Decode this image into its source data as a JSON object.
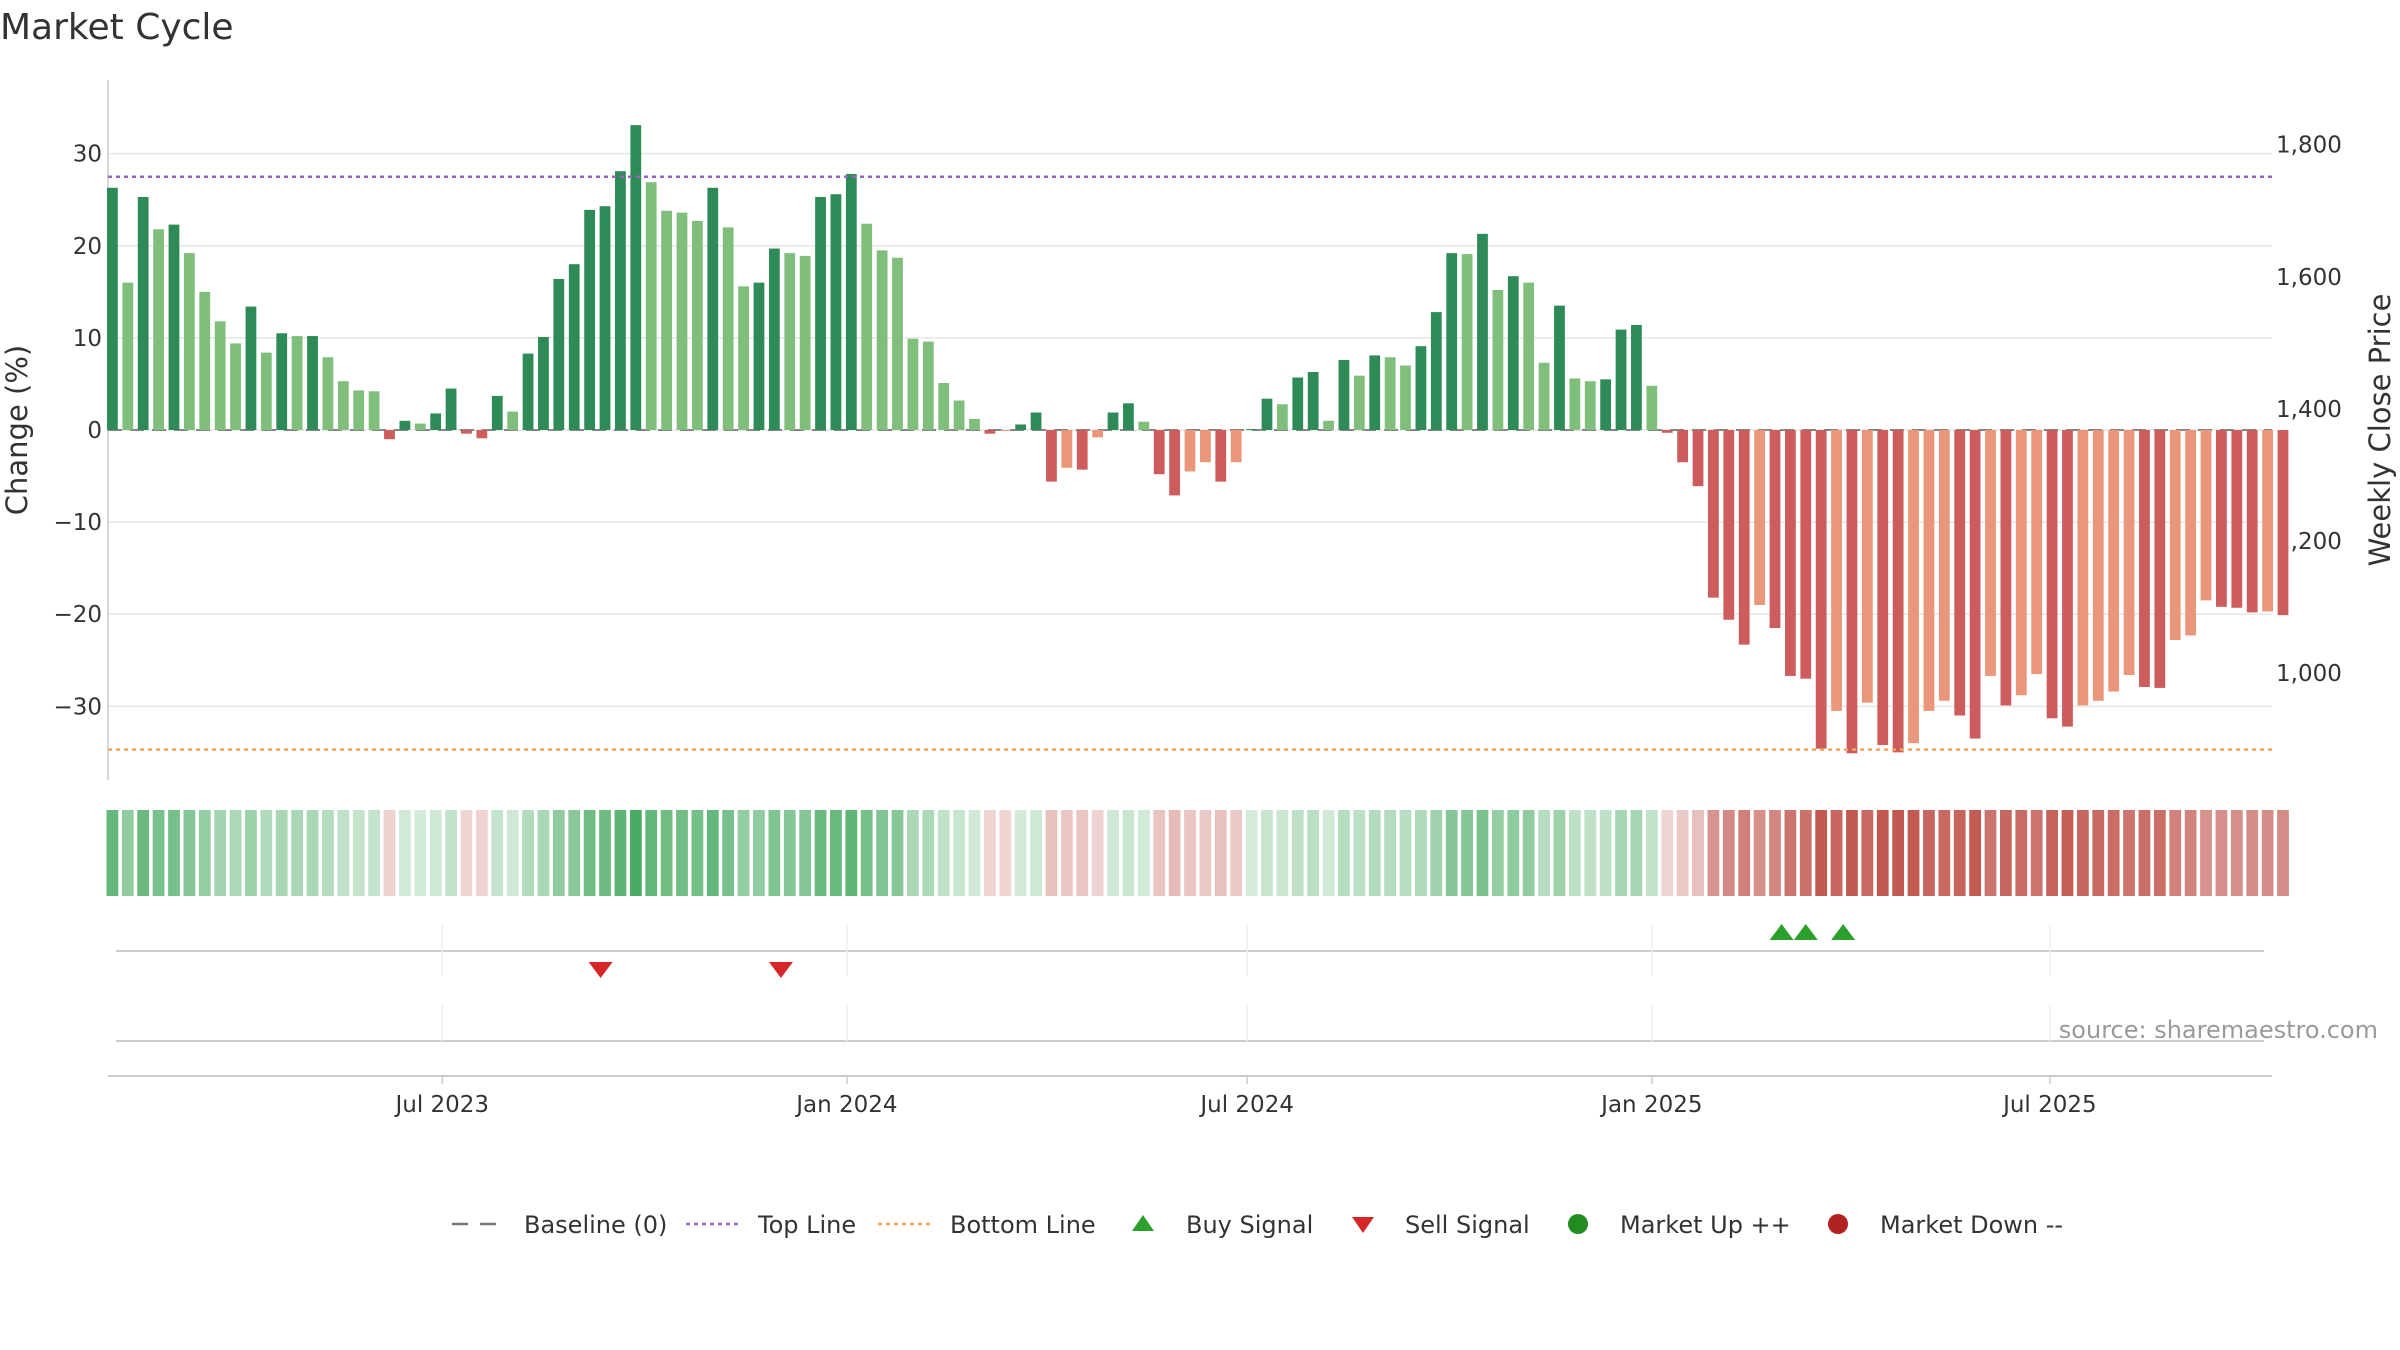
{
  "chart_data": {
    "type": "bar",
    "title": "Market Cycle",
    "ylabel": "Change (%)",
    "y2label": "Weekly Close Price",
    "ylim": [
      -38,
      38
    ],
    "y2lim": [
      838,
      1898
    ],
    "yticks": [
      30,
      20,
      10,
      0,
      -10,
      -20,
      -30
    ],
    "y2ticks": [
      1800,
      1600,
      1400,
      1200,
      1000
    ],
    "y2tick_labels": [
      "1,800",
      "1,600",
      "1,400",
      "1,200",
      "1,000"
    ],
    "top_line": 27.5,
    "bottom_line": -34.7,
    "x_start": "2023-01-30",
    "x_end": "2025-10-10",
    "xticks": [
      {
        "date": "2023-07-01",
        "label": "Jul 2023"
      },
      {
        "date": "2024-01-01",
        "label": "Jan 2024"
      },
      {
        "date": "2024-07-01",
        "label": "Jul 2024"
      },
      {
        "date": "2025-01-01",
        "label": "Jan 2025"
      },
      {
        "date": "2025-07-01",
        "label": "Jul 2025"
      }
    ],
    "series": [
      {
        "start": "2023-02-01",
        "step_days": 7,
        "values": [
          26.3,
          16.0,
          25.3,
          21.8,
          22.3,
          19.2,
          15.0,
          11.8,
          9.4,
          13.4,
          8.4,
          10.5,
          10.2,
          10.2,
          7.9,
          5.3,
          4.3,
          4.2,
          -1.0,
          1.0,
          0.7,
          1.8,
          4.5,
          -0.4,
          -0.9,
          3.7,
          2.0,
          8.3,
          10.1,
          16.4,
          18.0,
          23.9,
          24.3,
          28.1,
          33.1,
          26.9,
          23.8,
          23.6,
          22.7,
          26.3,
          22.0,
          15.6,
          16.0,
          19.7,
          19.2,
          18.9,
          25.3,
          25.6,
          27.8,
          22.4,
          19.5,
          18.7,
          9.9,
          9.6,
          5.1,
          3.2,
          1.2,
          -0.4,
          -0.1,
          0.6,
          1.9,
          -5.6,
          -4.1,
          -4.3,
          -0.8,
          1.9,
          2.9,
          0.9,
          -4.8,
          -7.1,
          -4.5,
          -3.5,
          -5.6,
          -3.5,
          0.1,
          3.4,
          2.8,
          5.7,
          6.3,
          1.0,
          7.6,
          5.9,
          8.1,
          7.9,
          7.0,
          9.1,
          12.8,
          19.2,
          19.1,
          21.3,
          15.2,
          16.7,
          16.0,
          7.3,
          13.5,
          5.6,
          5.3,
          5.5,
          10.9,
          11.4,
          4.8,
          -0.3,
          -3.5,
          -6.1,
          -18.2,
          -20.6,
          -23.3,
          -19.0,
          -21.5,
          -26.7,
          -27.0,
          -34.6,
          -30.5,
          -35.1,
          -29.6,
          -34.2,
          -35.0,
          -34.0,
          -30.5,
          -29.4,
          -31.0,
          -33.5,
          -26.7,
          -29.9,
          -28.8,
          -26.5,
          -31.3,
          -32.2,
          -29.9,
          -29.4,
          -28.4,
          -26.6,
          -27.9,
          -28.0,
          -22.8,
          -22.3,
          -18.5,
          -19.2,
          -19.3,
          -19.8,
          -19.7,
          -20.1
        ]
      }
    ],
    "buy_signals": [
      "2025-03-01",
      "2025-03-12",
      "2025-03-29"
    ],
    "sell_signals": [
      "2023-09-11",
      "2023-12-02"
    ],
    "legend": [
      {
        "kind": "baseline",
        "label": "Baseline (0)"
      },
      {
        "kind": "topline",
        "label": "Top Line"
      },
      {
        "kind": "bottomline",
        "label": "Bottom Line"
      },
      {
        "kind": "buy",
        "label": "Buy Signal"
      },
      {
        "kind": "sell",
        "label": "Sell Signal"
      },
      {
        "kind": "up",
        "label": "Market Up ++"
      },
      {
        "kind": "down",
        "label": "Market Down --"
      }
    ],
    "legend_position": "bottom",
    "source": "source: sharemaestro.com",
    "colors": {
      "strong_up": "#2e8b57",
      "weak_up": "#7fbf7b",
      "strong_down": "#cd5c5c",
      "weak_down": "#e9967a",
      "top_line": "#9467bd",
      "bottom_line": "#f4a460",
      "baseline": "#777777",
      "buy": "#2ca02c",
      "sell": "#d62728",
      "market_up": "#228b22",
      "market_down": "#b22222",
      "grid": "#e6e6e6",
      "heat_green": "#41a75c",
      "heat_red": "#c25a52"
    }
  }
}
